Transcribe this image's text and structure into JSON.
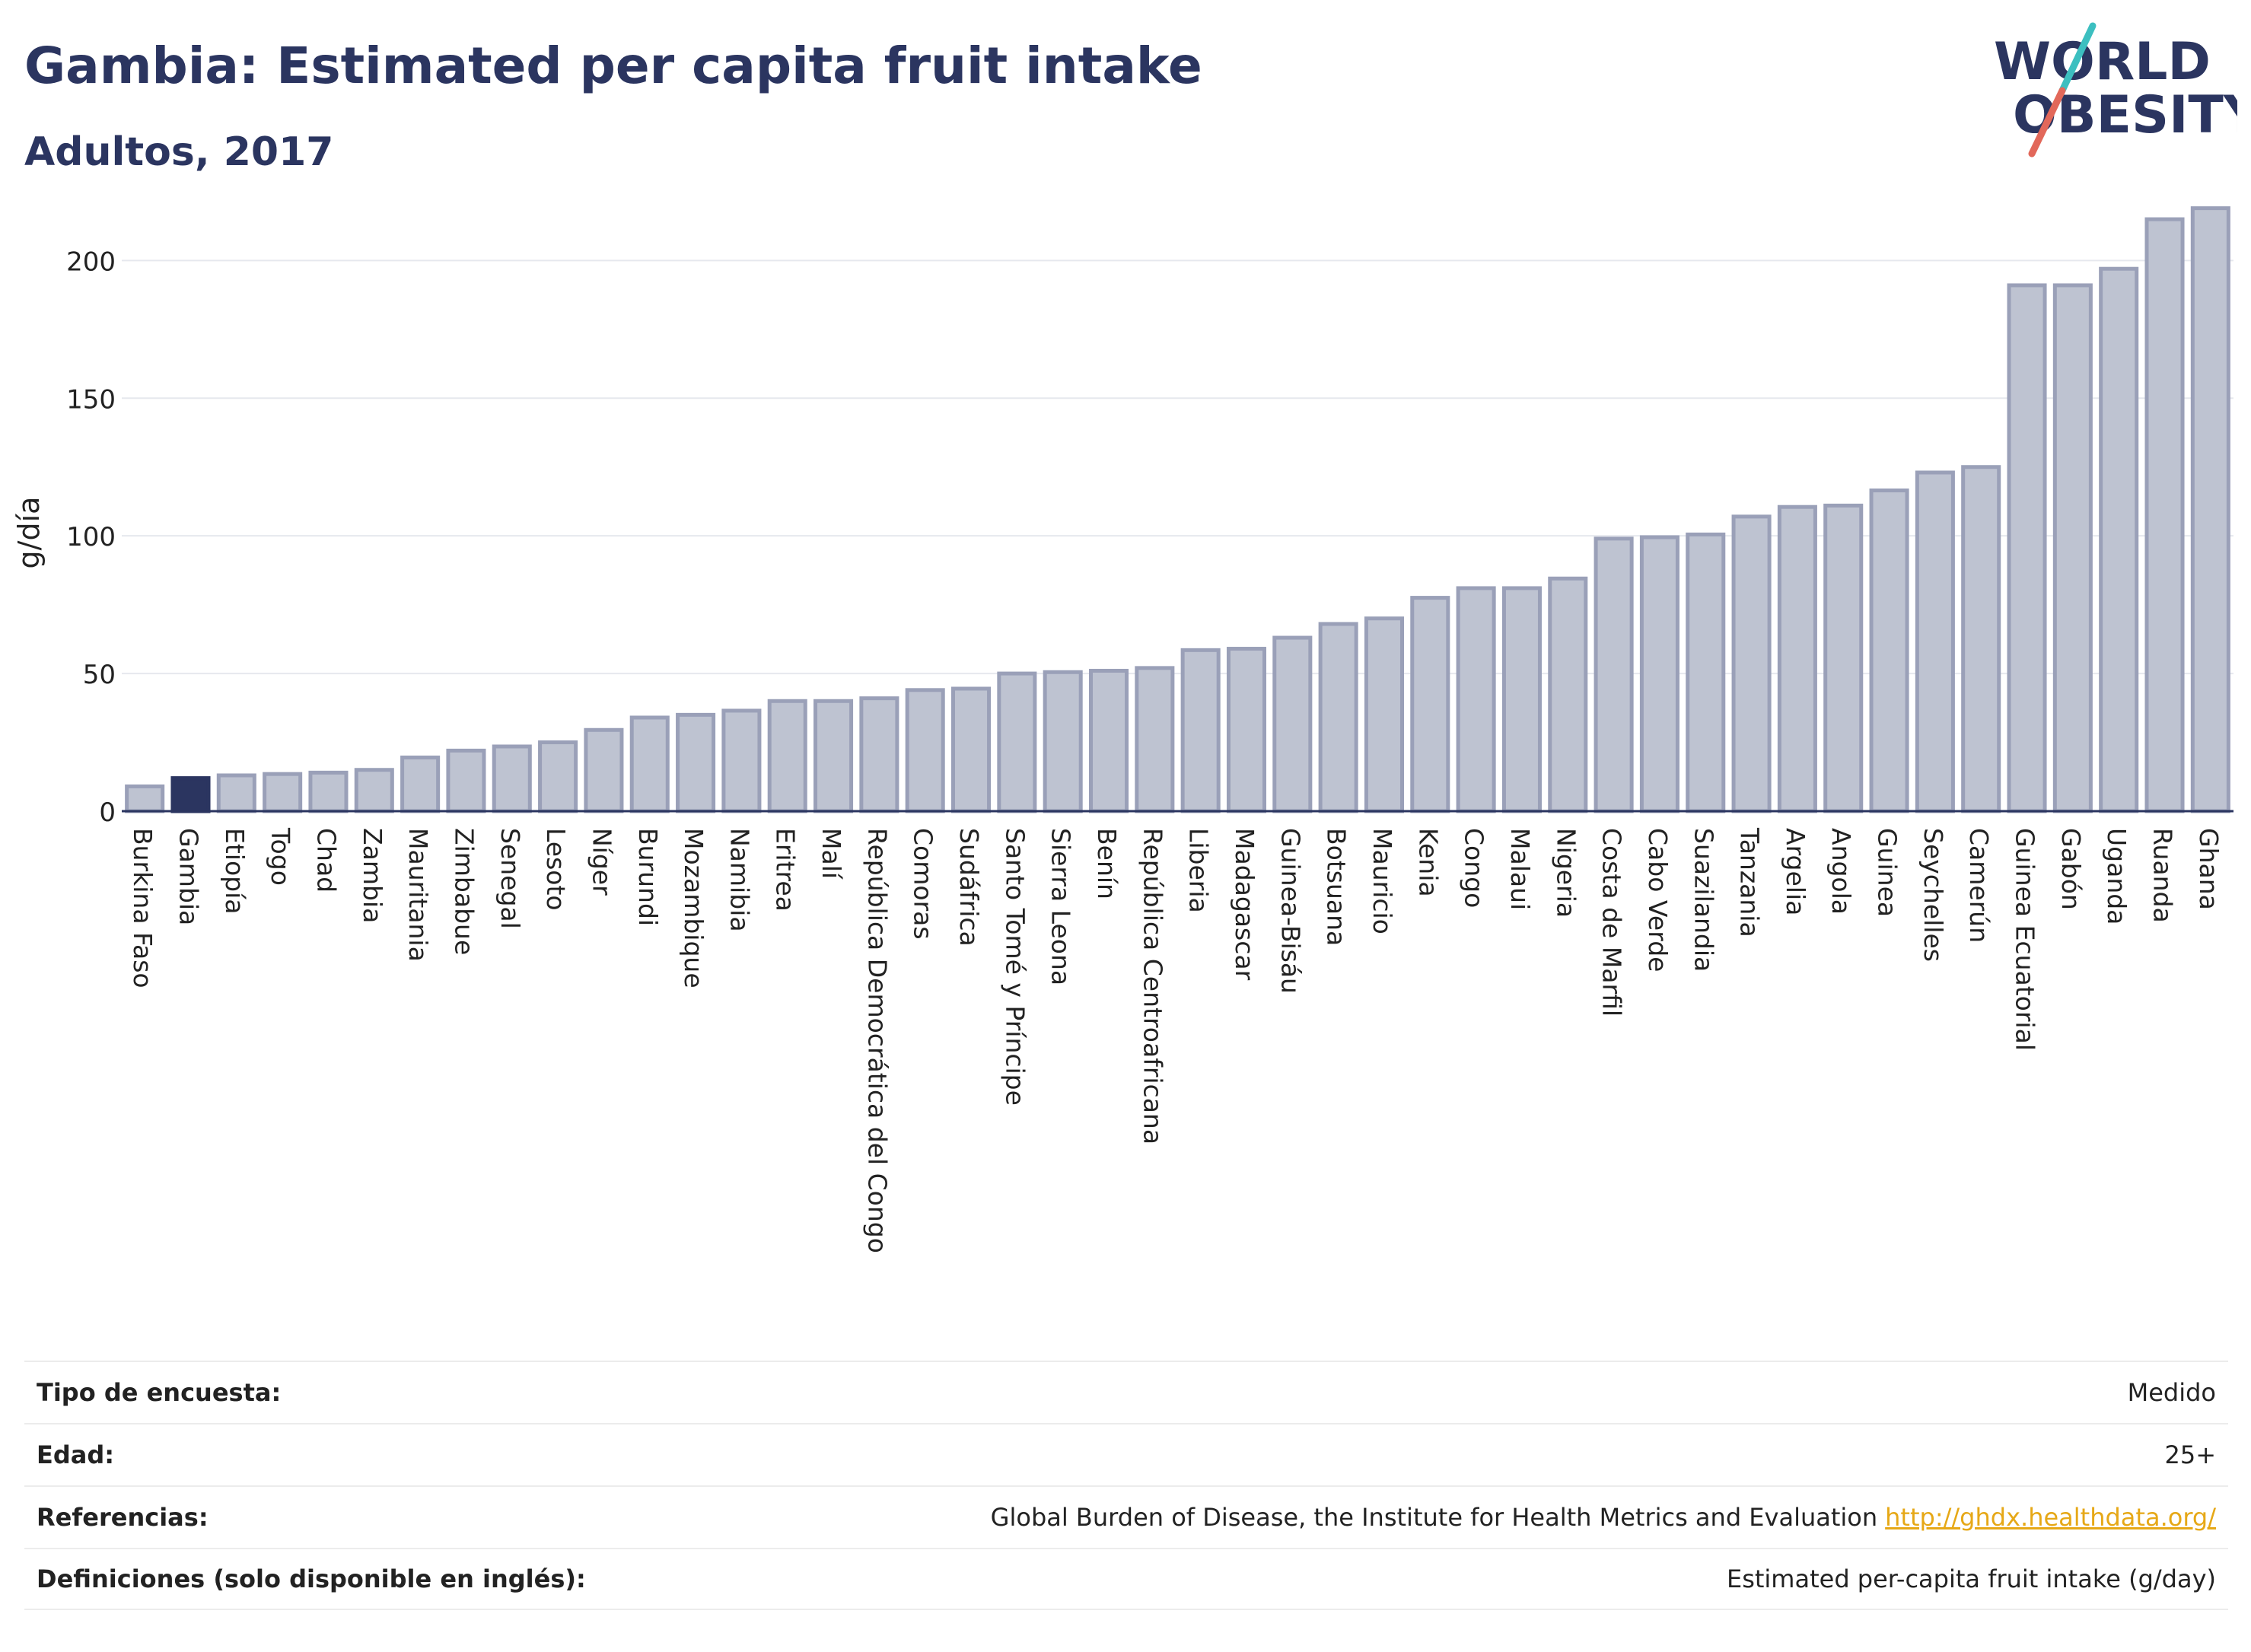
{
  "header": {
    "title": "Gambia: Estimated per capita fruit intake",
    "subtitle": "Adultos, 2017",
    "logo_line1": "WORLD",
    "logo_line2": "OBESITY"
  },
  "colors": {
    "bar": "#bec3d1",
    "bar_border": "#9aa0b8",
    "highlight": "#2b3560",
    "accent_teal": "#3cbfc0",
    "accent_coral": "#e2685a"
  },
  "chart_data": {
    "type": "bar",
    "title": "Gambia: Estimated per capita fruit intake",
    "subtitle": "Adultos, 2017",
    "ylabel": "g/día",
    "ylim": [
      0,
      220
    ],
    "yticks": [
      0,
      50,
      100,
      150,
      200
    ],
    "grid": true,
    "highlight": "Gambia",
    "categories": [
      "Burkina Faso",
      "Gambia",
      "Etiopía",
      "Togo",
      "Chad",
      "Zambia",
      "Mauritania",
      "Zimbabue",
      "Senegal",
      "Lesoto",
      "Níger",
      "Burundi",
      "Mozambique",
      "Namibia",
      "Eritrea",
      "Malí",
      "República Democrática del Congo",
      "Comoras",
      "Sudáfrica",
      "Santo Tomé y Príncipe",
      "Sierra Leona",
      "Benín",
      "República Centroafricana",
      "Liberia",
      "Madagascar",
      "Guinea-Bisáu",
      "Botsuana",
      "Mauricio",
      "Kenia",
      "Congo",
      "Malaui",
      "Nigeria",
      "Costa de Marfil",
      "Cabo Verde",
      "Suazilandia",
      "Tanzania",
      "Argelia",
      "Angola",
      "Guinea",
      "Seychelles",
      "Camerún",
      "Guinea Ecuatorial",
      "Gabón",
      "Uganda",
      "Ruanda",
      "Ghana"
    ],
    "values": [
      9,
      12,
      13,
      13.5,
      14,
      15,
      19.5,
      22,
      23.5,
      25,
      29.5,
      34,
      35,
      36.5,
      40,
      40,
      41,
      44,
      44.5,
      50,
      50.5,
      51,
      52,
      58.5,
      59,
      63,
      68,
      70,
      77.5,
      81,
      81,
      84.5,
      99,
      99.5,
      100.5,
      107,
      110.5,
      111,
      116.5,
      123,
      125,
      191,
      191,
      197,
      215,
      219
    ]
  },
  "info": {
    "rows": [
      {
        "label": "Tipo de encuesta:",
        "value": "Medido"
      },
      {
        "label": "Edad:",
        "value": "25+"
      },
      {
        "label": "Referencias:",
        "value": "Global Burden of Disease, the Institute for Health Metrics and Evaluation",
        "link": "http://ghdx.healthdata.org/"
      },
      {
        "label": "Definiciones (solo disponible en inglés):",
        "value": "Estimated per-capita fruit intake (g/day)"
      }
    ]
  }
}
